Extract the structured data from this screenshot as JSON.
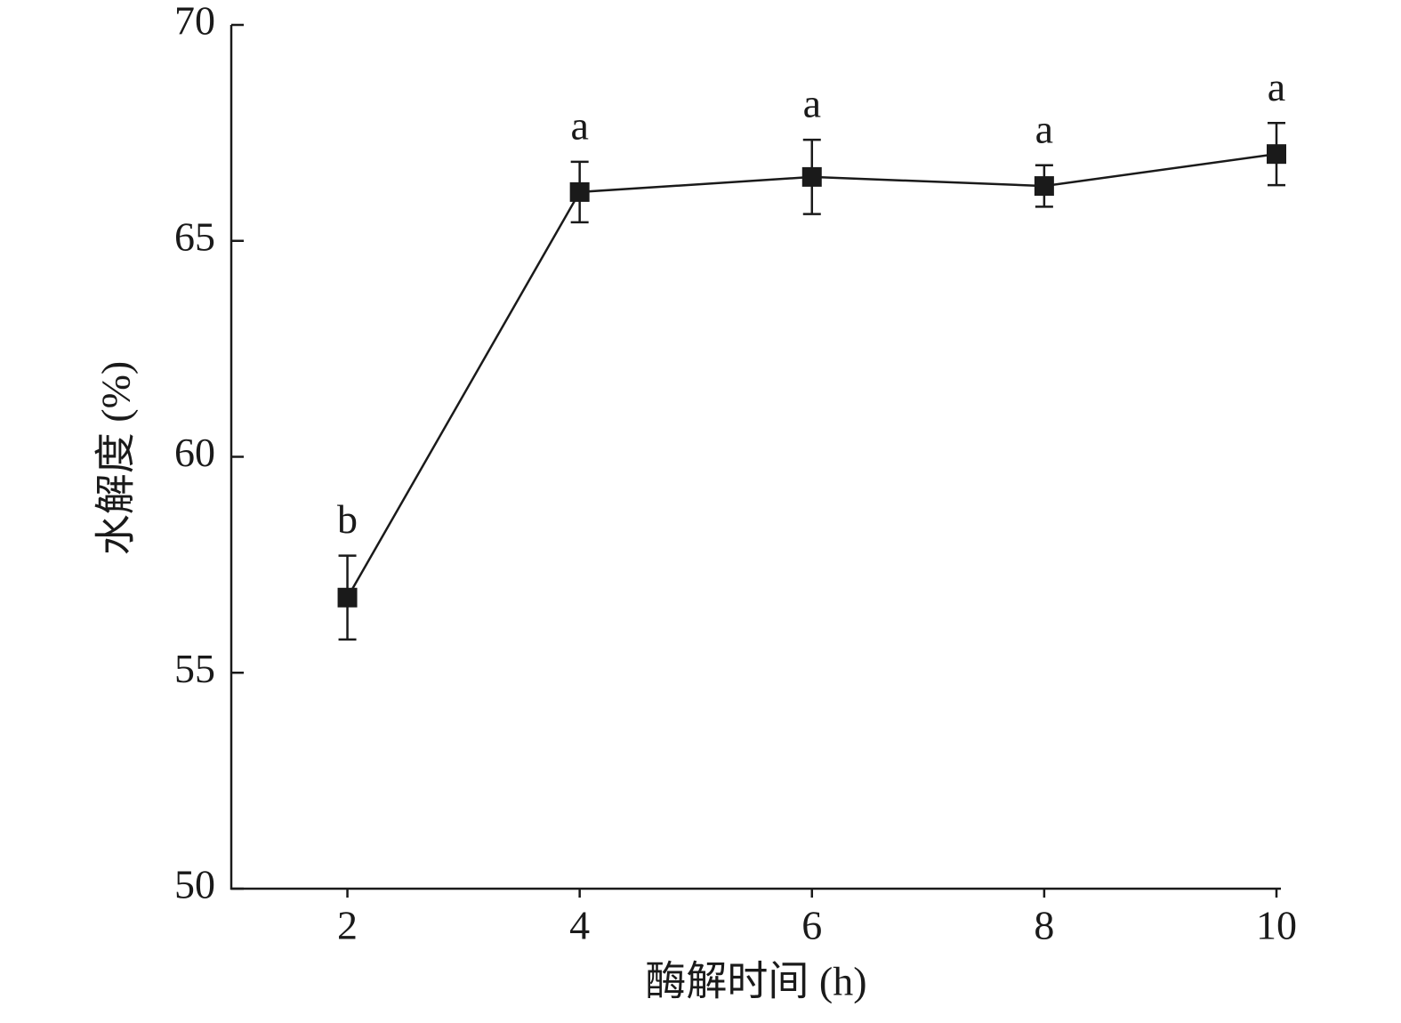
{
  "chart_data": {
    "type": "line",
    "xlabel": "酶解时间 (h)",
    "ylabel": "水解度 (%)",
    "x": [
      2,
      4,
      6,
      8,
      10
    ],
    "series": [
      {
        "color": "#1a1a1a",
        "values": [
          56.74,
          66.13,
          66.48,
          66.27,
          67.01
        ],
        "errors": [
          0.97,
          0.7,
          0.86,
          0.48,
          0.72
        ],
        "labels": [
          "b",
          "a",
          "a",
          "a",
          "a"
        ]
      }
    ],
    "xlim": [
      1,
      10
    ],
    "xticks": [
      2,
      4,
      6,
      8,
      10
    ],
    "ylim": [
      50,
      70
    ],
    "yticks": [
      50,
      55,
      60,
      65,
      70
    ]
  }
}
